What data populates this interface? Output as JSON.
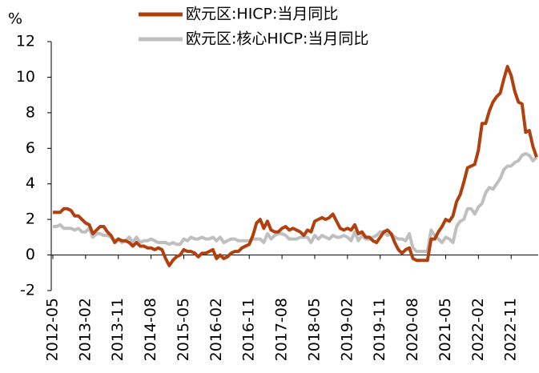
{
  "chart_data": {
    "type": "line",
    "y_unit": "%",
    "categories": [
      "2012-05",
      null,
      null,
      null,
      null,
      null,
      null,
      null,
      null,
      "2013-02",
      null,
      null,
      null,
      null,
      null,
      null,
      null,
      null,
      "2013-11",
      null,
      null,
      null,
      null,
      null,
      null,
      null,
      null,
      "2014-08",
      null,
      null,
      null,
      null,
      null,
      null,
      null,
      null,
      "2015-05",
      null,
      null,
      null,
      null,
      null,
      null,
      null,
      null,
      "2016-02",
      null,
      null,
      null,
      null,
      null,
      null,
      null,
      null,
      "2016-11",
      null,
      null,
      null,
      null,
      null,
      null,
      null,
      null,
      "2017-08",
      null,
      null,
      null,
      null,
      null,
      null,
      null,
      null,
      "2018-05",
      null,
      null,
      null,
      null,
      null,
      null,
      null,
      null,
      "2019-02",
      null,
      null,
      null,
      null,
      null,
      null,
      null,
      null,
      "2019-11",
      null,
      null,
      null,
      null,
      null,
      null,
      null,
      null,
      "2020-08",
      null,
      null,
      null,
      null,
      null,
      null,
      null,
      null,
      "2021-05",
      null,
      null,
      null,
      null,
      null,
      null,
      null,
      null,
      "2022-02",
      null,
      null,
      null,
      null,
      null,
      null,
      null,
      null,
      "2022-11",
      null,
      null,
      null,
      null,
      null,
      null,
      null
    ],
    "series": [
      {
        "name": "欧元区:HICP:当月同比",
        "color": "#b0400e",
        "values": [
          2.4,
          2.4,
          2.4,
          2.6,
          2.6,
          2.5,
          2.2,
          2.2,
          2.0,
          1.8,
          1.7,
          1.2,
          1.4,
          1.6,
          1.6,
          1.3,
          1.1,
          0.7,
          0.9,
          0.8,
          0.8,
          0.7,
          0.5,
          0.7,
          0.5,
          0.5,
          0.4,
          0.4,
          0.3,
          0.4,
          0.3,
          -0.2,
          -0.6,
          -0.3,
          -0.1,
          0.0,
          0.3,
          0.2,
          0.2,
          0.1,
          -0.1,
          0.1,
          0.1,
          0.2,
          0.3,
          -0.2,
          0.0,
          -0.2,
          -0.1,
          0.1,
          0.2,
          0.2,
          0.4,
          0.5,
          0.6,
          1.1,
          1.8,
          2.0,
          1.5,
          1.9,
          1.4,
          1.3,
          1.3,
          1.5,
          1.6,
          1.4,
          1.5,
          1.4,
          1.3,
          1.1,
          1.4,
          1.3,
          1.9,
          2.0,
          2.1,
          2.0,
          2.1,
          2.3,
          1.9,
          1.5,
          1.4,
          1.5,
          1.4,
          1.7,
          1.2,
          1.3,
          1.0,
          1.0,
          0.8,
          0.7,
          1.0,
          1.3,
          1.4,
          1.2,
          0.7,
          0.3,
          0.1,
          0.3,
          0.4,
          -0.2,
          -0.3,
          -0.3,
          -0.3,
          -0.3,
          0.9,
          0.9,
          1.3,
          1.6,
          2.0,
          1.9,
          2.2,
          3.0,
          3.4,
          4.1,
          4.9,
          5.0,
          5.1,
          5.9,
          7.4,
          7.4,
          8.1,
          8.6,
          8.9,
          9.1,
          9.9,
          10.6,
          10.1,
          9.2,
          8.6,
          8.5,
          6.9,
          7.0,
          6.1,
          5.5
        ]
      },
      {
        "name": "欧元区:核心HICP:当月同比",
        "color": "#bfbfbf",
        "values": [
          1.6,
          1.6,
          1.7,
          1.5,
          1.5,
          1.5,
          1.4,
          1.5,
          1.3,
          1.3,
          1.5,
          1.0,
          1.2,
          1.2,
          1.1,
          1.1,
          1.0,
          0.8,
          0.9,
          0.7,
          0.8,
          1.0,
          0.7,
          1.0,
          0.7,
          0.8,
          0.8,
          0.9,
          0.8,
          0.7,
          0.7,
          0.7,
          0.6,
          0.7,
          0.6,
          0.6,
          0.9,
          0.8,
          1.0,
          0.9,
          0.9,
          1.0,
          0.9,
          0.9,
          1.0,
          0.8,
          1.0,
          0.7,
          0.8,
          0.9,
          0.9,
          0.8,
          0.8,
          0.8,
          0.8,
          0.9,
          0.9,
          0.9,
          0.7,
          1.2,
          0.9,
          1.1,
          1.2,
          1.2,
          1.1,
          0.9,
          0.9,
          0.9,
          1.0,
          1.0,
          1.0,
          0.7,
          1.1,
          0.9,
          1.1,
          1.0,
          0.9,
          1.1,
          1.0,
          1.0,
          1.1,
          1.0,
          0.8,
          1.3,
          0.8,
          1.1,
          0.9,
          0.9,
          1.0,
          1.1,
          1.3,
          1.3,
          1.1,
          1.2,
          1.0,
          0.9,
          0.9,
          0.8,
          1.2,
          0.4,
          0.2,
          0.2,
          0.2,
          0.2,
          1.4,
          1.1,
          0.9,
          0.7,
          1.0,
          0.9,
          0.7,
          1.6,
          1.9,
          2.0,
          2.6,
          2.6,
          2.3,
          2.7,
          2.9,
          3.5,
          3.8,
          3.7,
          4.0,
          4.3,
          4.8,
          5.0,
          5.0,
          5.2,
          5.3,
          5.6,
          5.7,
          5.6,
          5.3,
          5.5
        ]
      }
    ],
    "ylim": [
      -2,
      12
    ],
    "yticks": [
      -2,
      0,
      2,
      4,
      6,
      8,
      10,
      12
    ],
    "grid": false,
    "legend": "top"
  }
}
